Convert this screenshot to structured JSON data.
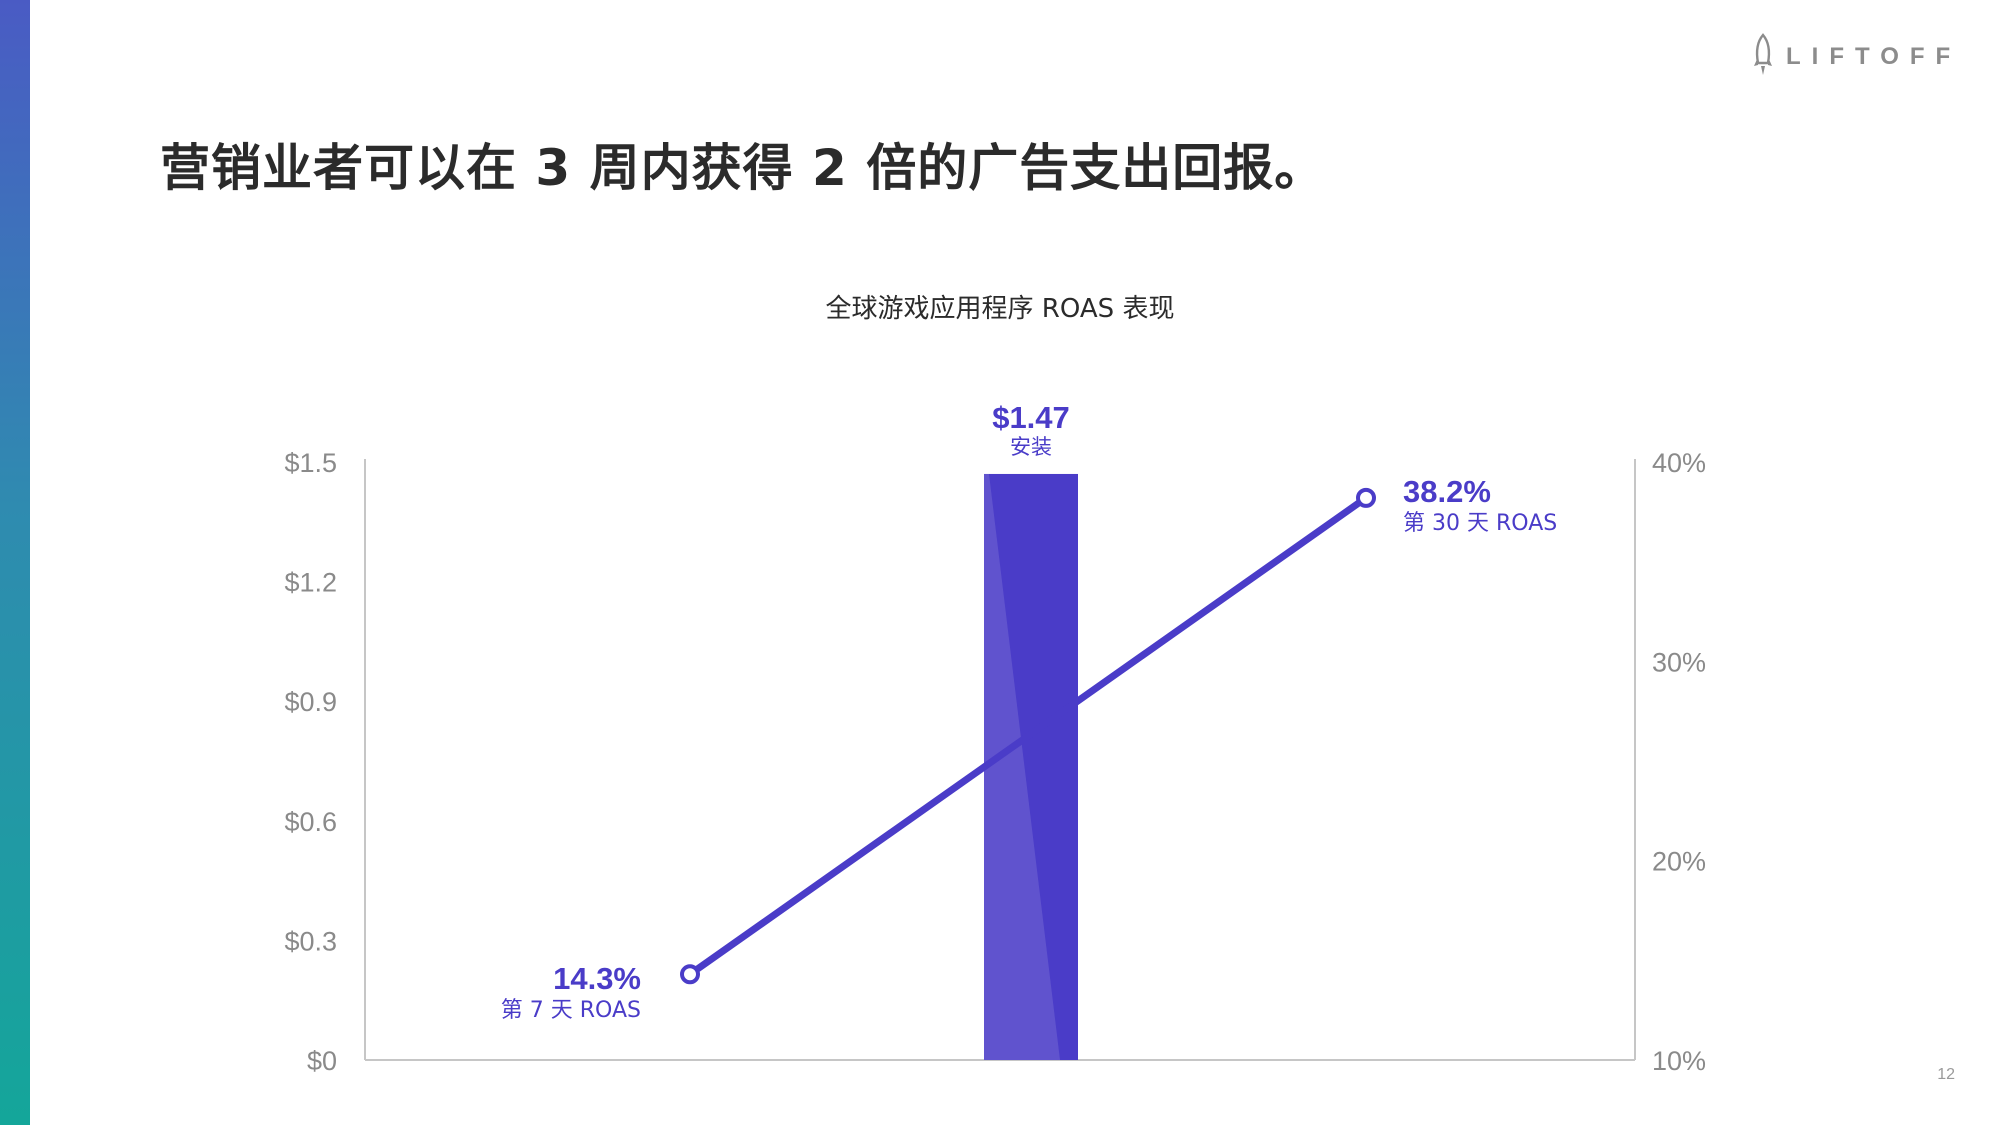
{
  "brand": {
    "name": "LIFTOFF",
    "logo_icon": "rocket-icon",
    "accent_color": "#4a3cc8",
    "axis_color": "#c6c6c6",
    "label_color": "#8a8a8a"
  },
  "headline": "营销业者可以在 3 周内获得 2 倍的广告支出回报。",
  "page_number": "12",
  "chart_data": {
    "type": "bar",
    "title": "全球游戏应用程序 ROAS 表现",
    "left_axis": {
      "ylim": [
        0,
        1.5
      ],
      "ticks": [
        "$0",
        "$0.3",
        "$0.6",
        "$0.9",
        "$1.2",
        "$1.5"
      ]
    },
    "right_axis": {
      "ylim": [
        10,
        40
      ],
      "ticks": [
        "10%",
        "20%",
        "30%",
        "40%"
      ]
    },
    "grid": false,
    "bar": {
      "value": 1.47,
      "value_label": "$1.47",
      "label": "安装"
    },
    "line": {
      "axis": "right",
      "points": [
        {
          "value": 14.3,
          "value_label": "14.3%",
          "label": "第 7 天 ROAS"
        },
        {
          "value": 38.2,
          "value_label": "38.2%",
          "label": "第 30 天 ROAS"
        }
      ]
    }
  }
}
